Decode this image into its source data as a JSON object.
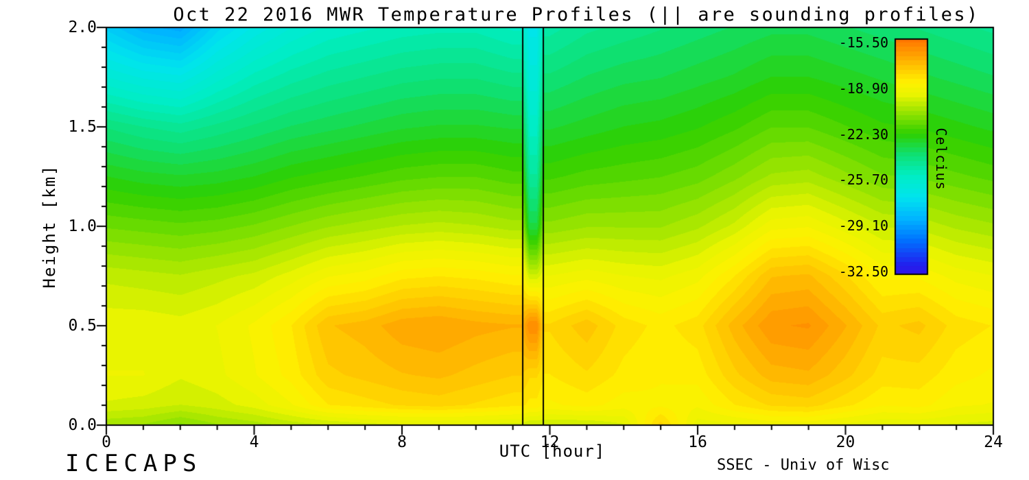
{
  "chart_data": {
    "type": "heatmap",
    "title": "Oct 22 2016 MWR Temperature Profiles (|| are sounding profiles)",
    "xlabel": "UTC [hour]",
    "ylabel": "Height [km]",
    "footer_left": "ICECAPS",
    "footer_right": "SSEC - Univ of Wisc",
    "x_range": [
      0,
      24
    ],
    "y_range": [
      0.0,
      2.0
    ],
    "x_major_ticks": [
      0,
      4,
      8,
      12,
      16,
      20,
      24
    ],
    "x_minor_step": 1,
    "y_major_ticks": [
      "0.0",
      "0.5",
      "1.0",
      "1.5",
      "2.0"
    ],
    "y_minor_step": 0.1,
    "sounding_lines_utc": [
      11.27,
      11.83
    ],
    "background_color": "#ffffff",
    "axis_color": "#000000",
    "contour_step": 0.34,
    "colorbar": {
      "label": "Celcius",
      "tick_labels": [
        "-15.50",
        "-18.90",
        "-22.30",
        "-25.70",
        "-29.10",
        "-32.50"
      ],
      "tick_values": [
        -15.5,
        -18.9,
        -22.3,
        -25.7,
        -29.1,
        -32.5
      ],
      "vmax": -15.25,
      "vmin": -32.7
    },
    "colormap_stops": [
      [
        -34.0,
        "#4b00d8"
      ],
      [
        -32.0,
        "#2121ee"
      ],
      [
        -30.2,
        "#0072ff"
      ],
      [
        -28.6,
        "#00b4ff"
      ],
      [
        -27.0,
        "#00e4ee"
      ],
      [
        -25.4,
        "#00eec4"
      ],
      [
        -23.8,
        "#0fe070"
      ],
      [
        -22.3,
        "#2ed000"
      ],
      [
        -20.8,
        "#90e200"
      ],
      [
        -19.4,
        "#e8f400"
      ],
      [
        -18.5,
        "#fff200"
      ],
      [
        -17.4,
        "#ffc800"
      ],
      [
        -16.2,
        "#ff9800"
      ],
      [
        -15.2,
        "#ff7300"
      ],
      [
        -14.4,
        "#ff4e00"
      ]
    ],
    "grid": {
      "hours": [
        0,
        1,
        2,
        3,
        4,
        5,
        6,
        7,
        8,
        9,
        10,
        11,
        11.25,
        11.45,
        11.65,
        11.85,
        12,
        13,
        14,
        15,
        16,
        17,
        18,
        19,
        20,
        21,
        22,
        23,
        24
      ],
      "heights_km": [
        0.0,
        0.1,
        0.25,
        0.5,
        0.75,
        1.0,
        1.25,
        1.5,
        1.75,
        2.0
      ],
      "temps_c": [
        [
          -20.5,
          -20.6,
          -21.0,
          -20.6,
          -20.4,
          -20.1,
          -19.9,
          -19.7,
          -19.6,
          -19.6,
          -19.6,
          -19.7,
          -19.7,
          -19.9,
          -19.9,
          -19.9,
          -19.9,
          -19.9,
          -19.6,
          -17.7,
          -19.4,
          -19.3,
          -19.1,
          -19.1,
          -19.3,
          -19.5,
          -19.5,
          -19.6,
          -19.7
        ],
        [
          -19.6,
          -19.7,
          -19.9,
          -19.7,
          -19.4,
          -18.9,
          -18.2,
          -18.0,
          -17.8,
          -17.7,
          -17.9,
          -18.1,
          -18.1,
          -18.3,
          -18.3,
          -18.6,
          -18.6,
          -18.4,
          -18.7,
          -18.6,
          -18.8,
          -18.2,
          -17.8,
          -17.7,
          -18.1,
          -18.5,
          -18.4,
          -18.8,
          -18.9
        ],
        [
          -19.2,
          -19.2,
          -19.5,
          -19.3,
          -18.9,
          -18.4,
          -17.6,
          -17.4,
          -17.2,
          -17.1,
          -17.3,
          -17.5,
          -17.5,
          -17.8,
          -17.8,
          -18.2,
          -18.2,
          -17.9,
          -18.3,
          -18.5,
          -18.4,
          -17.6,
          -17.0,
          -16.9,
          -17.4,
          -18.0,
          -18.0,
          -18.4,
          -18.6
        ],
        [
          -19.3,
          -19.3,
          -19.4,
          -19.2,
          -18.8,
          -18.2,
          -17.2,
          -17.0,
          -16.6,
          -16.5,
          -16.7,
          -16.8,
          -16.8,
          -15.8,
          -15.8,
          -17.8,
          -17.8,
          -17.3,
          -18.0,
          -18.3,
          -18.0,
          -17.0,
          -16.2,
          -16.1,
          -16.8,
          -17.6,
          -17.4,
          -18.0,
          -18.2
        ],
        [
          -20.0,
          -20.1,
          -20.2,
          -20.0,
          -19.8,
          -19.4,
          -18.9,
          -18.7,
          -18.3,
          -18.2,
          -18.3,
          -18.5,
          -18.5,
          -19.8,
          -19.8,
          -19.2,
          -19.2,
          -19.0,
          -19.2,
          -19.3,
          -19.0,
          -18.2,
          -17.2,
          -17.1,
          -17.8,
          -18.6,
          -18.6,
          -19.0,
          -19.2
        ],
        [
          -21.3,
          -21.4,
          -21.5,
          -21.4,
          -21.2,
          -20.9,
          -20.6,
          -20.4,
          -20.2,
          -20.1,
          -20.2,
          -20.4,
          -20.4,
          -23.2,
          -23.2,
          -20.8,
          -20.8,
          -20.6,
          -20.6,
          -20.6,
          -20.3,
          -19.8,
          -19.0,
          -18.9,
          -19.4,
          -19.9,
          -20.0,
          -20.3,
          -20.5
        ],
        [
          -22.6,
          -22.8,
          -22.9,
          -22.8,
          -22.6,
          -22.3,
          -22.1,
          -21.9,
          -21.7,
          -21.6,
          -21.6,
          -21.8,
          -21.8,
          -24.6,
          -24.6,
          -22.0,
          -22.0,
          -21.8,
          -21.7,
          -21.6,
          -21.4,
          -21.0,
          -20.5,
          -20.4,
          -20.8,
          -21.2,
          -21.3,
          -21.5,
          -21.7
        ],
        [
          -24.0,
          -24.3,
          -24.5,
          -24.2,
          -23.9,
          -23.6,
          -23.4,
          -23.2,
          -23.0,
          -22.9,
          -22.9,
          -23.0,
          -23.0,
          -25.5,
          -25.5,
          -23.0,
          -23.0,
          -22.8,
          -22.6,
          -22.5,
          -22.3,
          -22.0,
          -21.6,
          -21.6,
          -21.9,
          -22.2,
          -22.3,
          -22.5,
          -22.7
        ],
        [
          -26.0,
          -26.4,
          -26.6,
          -25.8,
          -25.2,
          -24.8,
          -24.5,
          -24.3,
          -24.1,
          -24.0,
          -24.0,
          -24.2,
          -24.2,
          -26.2,
          -26.2,
          -23.9,
          -23.9,
          -23.6,
          -23.4,
          -23.3,
          -23.1,
          -22.9,
          -22.6,
          -22.6,
          -22.8,
          -23.0,
          -23.2,
          -23.4,
          -23.6
        ],
        [
          -27.8,
          -28.6,
          -28.9,
          -27.5,
          -26.6,
          -26.0,
          -25.6,
          -25.4,
          -25.2,
          -25.1,
          -25.1,
          -25.4,
          -25.4,
          -26.8,
          -26.8,
          -24.8,
          -24.8,
          -24.4,
          -24.2,
          -24.0,
          -23.8,
          -23.6,
          -23.4,
          -23.4,
          -23.6,
          -23.8,
          -24.0,
          -24.2,
          -24.4
        ]
      ]
    }
  }
}
